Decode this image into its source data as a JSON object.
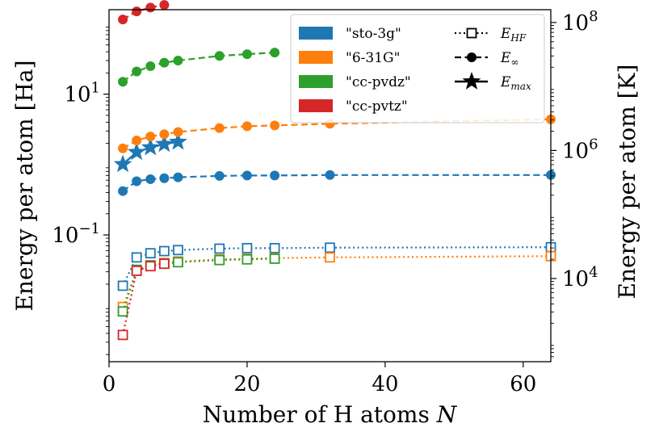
{
  "chart_data": {
    "type": "line",
    "xlabel_text": "Number of H atoms ",
    "xlabel_var": "N",
    "ylabel_left": "Energy per atom [Ha]",
    "ylabel_right": "Energy per atom [K]",
    "xlim": [
      0,
      64
    ],
    "ylim_left_log10": [
      -2.8,
      2.2
    ],
    "ylim_right_log10": [
      2.7,
      8.2
    ],
    "x_ticks": [
      0,
      20,
      40,
      60
    ],
    "x_tick_labels": [
      "0",
      "20",
      "40",
      "60"
    ],
    "y_left_ticks": [
      {
        "value": 10,
        "base": "10",
        "exp": "1"
      },
      {
        "value": 0.1,
        "base": "10",
        "exp": "−1"
      }
    ],
    "y_right_ticks": [
      {
        "value": 10000,
        "base": "10",
        "exp": "4"
      },
      {
        "value": 1000000,
        "base": "10",
        "exp": "6"
      },
      {
        "value": 100000000,
        "base": "10",
        "exp": "8"
      }
    ],
    "legend_basis": [
      {
        "label": "\"sto-3g\"",
        "color": "#1f77b4"
      },
      {
        "label": "\"6-31G\"",
        "color": "#ff7f0e"
      },
      {
        "label": "\"cc-pvdz\"",
        "color": "#2ca02c"
      },
      {
        "label": "\"cc-pvtz\"",
        "color": "#d62728"
      }
    ],
    "legend_styles": [
      {
        "sym": "E",
        "sub": "HF",
        "style": "dotted-square"
      },
      {
        "sym": "E",
        "sub": "∞",
        "style": "dashed-circle"
      },
      {
        "sym": "E",
        "sub": "max",
        "style": "star"
      }
    ],
    "series": [
      {
        "name": "sto-3g",
        "color": "#1f77b4",
        "E_HF": {
          "x": [
            2,
            4,
            6,
            8,
            10,
            16,
            20,
            24,
            32,
            64
          ],
          "y": [
            0.019,
            0.048,
            0.055,
            0.059,
            0.061,
            0.064,
            0.065,
            0.065,
            0.066,
            0.067
          ]
        },
        "E_inf": {
          "x": [
            2,
            4,
            6,
            8,
            10,
            16,
            20,
            24,
            32,
            64
          ],
          "y": [
            0.42,
            0.58,
            0.62,
            0.64,
            0.66,
            0.69,
            0.7,
            0.7,
            0.71,
            0.71
          ]
        },
        "E_max": {
          "x": [
            2,
            4,
            6,
            8,
            10
          ],
          "y": [
            1.01,
            1.5,
            1.75,
            1.95,
            2.1
          ]
        }
      },
      {
        "name": "6-31G",
        "color": "#ff7f0e",
        "E_HF": {
          "x": [
            2,
            4,
            6,
            8,
            10,
            16,
            20,
            24,
            32,
            64
          ],
          "y": [
            0.0095,
            0.031,
            0.037,
            0.04,
            0.042,
            0.045,
            0.046,
            0.047,
            0.048,
            0.05
          ]
        },
        "E_inf": {
          "x": [
            2,
            4,
            6,
            8,
            10,
            16,
            20,
            24,
            32,
            64
          ],
          "y": [
            1.7,
            2.2,
            2.5,
            2.7,
            2.9,
            3.3,
            3.5,
            3.6,
            3.8,
            4.4
          ]
        }
      },
      {
        "name": "cc-pvdz",
        "color": "#2ca02c",
        "E_HF": {
          "x": [
            2,
            4,
            6,
            8,
            10,
            16,
            20,
            24
          ],
          "y": [
            0.0082,
            0.032,
            0.037,
            0.039,
            0.041,
            0.044,
            0.045,
            0.046
          ]
        },
        "E_inf": {
          "x": [
            2,
            4,
            6,
            8,
            10,
            16,
            20,
            24
          ],
          "y": [
            15.0,
            21.0,
            25.0,
            28.0,
            30.0,
            35.0,
            37.0,
            39.0
          ]
        }
      },
      {
        "name": "cc-pvtz",
        "color": "#d62728",
        "E_HF": {
          "x": [
            2,
            4,
            6,
            8
          ],
          "y": [
            0.0038,
            0.031,
            0.036,
            0.039
          ]
        },
        "E_inf": {
          "x": [
            2,
            4,
            6,
            8
          ],
          "y": [
            115.0,
            150.0,
            170.0,
            185.0
          ]
        }
      }
    ]
  }
}
